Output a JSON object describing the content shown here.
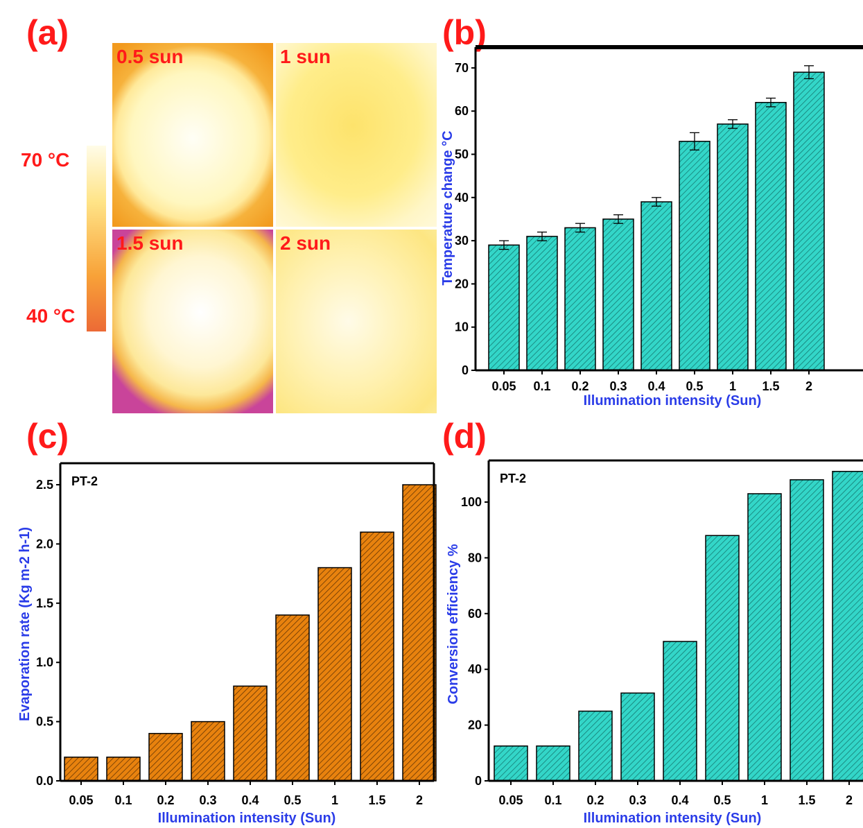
{
  "panel_letters": [
    "(a)",
    "(b)",
    "(c)",
    "(d)"
  ],
  "thermal": {
    "tiles": [
      "0.5 sun",
      "1 sun",
      "1.5 sun",
      "2 sun"
    ],
    "scale_max": "70 °C",
    "scale_min": "40 °C",
    "colors": [
      "#ec6a36",
      "#f8a238",
      "#ffe488",
      "#fffce8"
    ]
  },
  "chart_data": [
    {
      "panel": "(b)",
      "type": "bar",
      "categories": [
        "0.05",
        "0.1",
        "0.2",
        "0.3",
        "0.4",
        "0.5",
        "1",
        "1.5",
        "2"
      ],
      "values": [
        29,
        31,
        33,
        35,
        39,
        53,
        57,
        62,
        69
      ],
      "errors": [
        1,
        1,
        1,
        1,
        1,
        2,
        1,
        1,
        1.5
      ],
      "xlabel": "Illumination intensity (Sun)",
      "ylabel": "Temperature change °C",
      "ylim": [
        0,
        75
      ],
      "yticks": [
        0,
        10,
        20,
        30,
        40,
        50,
        60,
        70
      ],
      "bar_color": "#33d6c8",
      "hatch": true
    },
    {
      "panel": "(c)",
      "type": "bar",
      "annotation": "PT-2",
      "categories": [
        "0.05",
        "0.1",
        "0.2",
        "0.3",
        "0.4",
        "0.5",
        "1",
        "1.5",
        "2"
      ],
      "values": [
        0.2,
        0.2,
        0.4,
        0.5,
        0.8,
        1.4,
        1.8,
        2.1,
        2.5
      ],
      "xlabel": "Illumination intensity (Sun)",
      "ylabel": "Evaporation rate (Kg m-2 h-1)",
      "ylim": [
        0,
        2.65
      ],
      "yticks": [
        "0.0",
        "0.5",
        "1.0",
        "1.5",
        "2.0",
        "2.5"
      ],
      "bar_color": "#e8820e",
      "hatch": true
    },
    {
      "panel": "(d)",
      "type": "bar",
      "annotation": "PT-2",
      "categories": [
        "0.05",
        "0.1",
        "0.2",
        "0.3",
        "0.4",
        "0.5",
        "1",
        "1.5",
        "2"
      ],
      "values": [
        12.5,
        12.5,
        25,
        31.5,
        50,
        88,
        103,
        108,
        111
      ],
      "xlabel": "Illumination intensity (Sun)",
      "ylabel": "Conversion efficiency %",
      "ylim": [
        0,
        112
      ],
      "yticks": [
        0,
        20,
        40,
        60,
        80,
        100
      ],
      "bar_color": "#33d6c8",
      "hatch": true
    }
  ]
}
